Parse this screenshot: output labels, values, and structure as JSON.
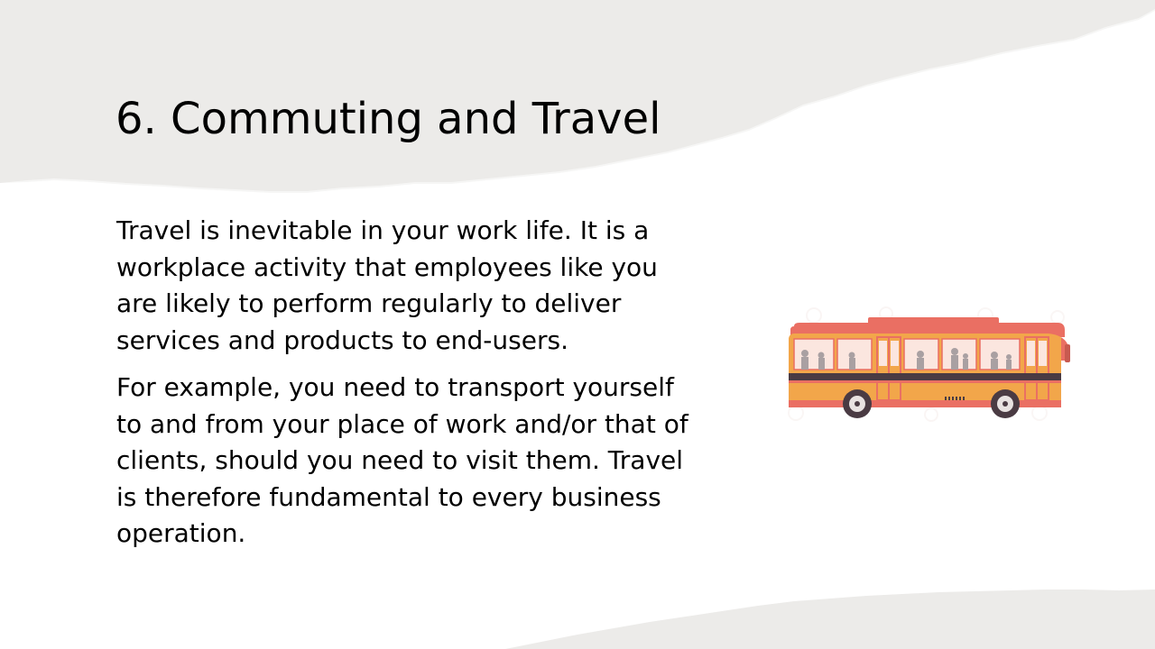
{
  "slide": {
    "title": "6. Commuting and Travel",
    "paragraphs": [
      {
        "lines": [
          "Travel is inevitable in your work life. It is a",
          "workplace activity that employees like you",
          "are likely to perform regularly to deliver",
          "services and products to end-users."
        ]
      },
      {
        "lines": [
          "For example, you need to transport yourself",
          "to and from your place of work and/or that of",
          "clients, should you need to visit them. Travel",
          "is therefore fundamental to every business",
          "operation."
        ]
      }
    ]
  },
  "illustration": {
    "icon": "bus-icon"
  },
  "colors": {
    "background": "#ffffff",
    "paper_grey": "#ecebe9",
    "bus_roof": "#ea6f63",
    "bus_body": "#f2a64a",
    "bus_stripe": "#4a3b43",
    "window": "#fbe6df"
  }
}
